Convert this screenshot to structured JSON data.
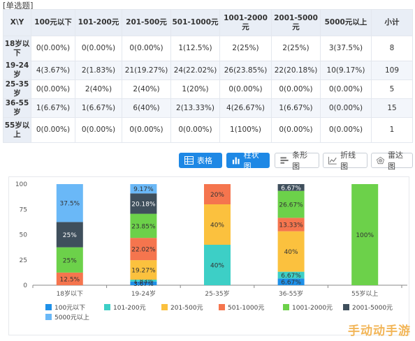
{
  "question_tag": "[单选题]",
  "table": {
    "corner": "X\\Y",
    "columns": [
      "100元以下",
      "101-200元",
      "201-500元",
      "501-1000元",
      "1001-2000元",
      "2001-5000元",
      "5000元以上",
      "小计"
    ],
    "rows": [
      {
        "label": "18岁以下",
        "cells": [
          "0(0.00%)",
          "0(0.00%)",
          "0(0.00%)",
          "1(12.5%)",
          "2(25%)",
          "2(25%)",
          "3(37.5%)",
          "8"
        ]
      },
      {
        "label": "19-24岁",
        "cells": [
          "4(3.67%)",
          "2(1.83%)",
          "21(19.27%)",
          "24(22.02%)",
          "26(23.85%)",
          "22(20.18%)",
          "10(9.17%)",
          "109"
        ]
      },
      {
        "label": "25-35岁",
        "cells": [
          "0(0.00%)",
          "2(40%)",
          "2(40%)",
          "1(20%)",
          "0(0.00%)",
          "0(0.00%)",
          "0(0.00%)",
          "5"
        ]
      },
      {
        "label": "36-55岁",
        "cells": [
          "1(6.67%)",
          "1(6.67%)",
          "6(40%)",
          "2(13.33%)",
          "4(26.67%)",
          "1(6.67%)",
          "0(0.00%)",
          "15"
        ]
      },
      {
        "label": "55岁以上",
        "cells": [
          "0(0.00%)",
          "0(0.00%)",
          "0(0.00%)",
          "0(0.00%)",
          "1(100%)",
          "0(0.00%)",
          "0(0.00%)",
          "1"
        ]
      }
    ]
  },
  "toolbar": {
    "table_label": "表格",
    "bar_label": "柱状图",
    "hbar_label": "条形图",
    "line_label": "折线图",
    "radar_label": "雷达图"
  },
  "colors": {
    "primary": "#1e88e5",
    "series": [
      "#1e90e8",
      "#3dcfc6",
      "#fbc13e",
      "#f5754e",
      "#6cd14a",
      "#3f4f5c",
      "#6ab8f7"
    ]
  },
  "chart_data": {
    "type": "bar",
    "stacked": true,
    "categories": [
      "18岁以下",
      "19-24岁",
      "25-35岁",
      "36-55岁",
      "55岁以上"
    ],
    "ylim": [
      0,
      100
    ],
    "yticks": [
      0,
      25,
      50,
      75,
      100
    ],
    "grid": false,
    "legend_position": "bottom",
    "series": [
      {
        "name": "100元以下",
        "values": [
          0,
          3.67,
          0,
          6.67,
          0
        ],
        "labels": [
          "",
          "3.67%",
          "",
          "6.67%",
          ""
        ]
      },
      {
        "name": "101-200元",
        "values": [
          0,
          1.83,
          40,
          6.67,
          0
        ],
        "labels": [
          "",
          "1.83%",
          "40%",
          "6.67%",
          ""
        ]
      },
      {
        "name": "201-500元",
        "values": [
          0,
          19.27,
          40,
          40,
          0
        ],
        "labels": [
          "",
          "19.27%",
          "40%",
          "40%",
          ""
        ]
      },
      {
        "name": "501-1000元",
        "values": [
          12.5,
          22.02,
          20,
          13.33,
          0
        ],
        "labels": [
          "12.5%",
          "22.02%",
          "20%",
          "13.33%",
          ""
        ]
      },
      {
        "name": "1001-2000元",
        "values": [
          25,
          23.85,
          0,
          26.67,
          100
        ],
        "labels": [
          "25%",
          "23.85%",
          "",
          "26.67%",
          "100%"
        ]
      },
      {
        "name": "2001-5000元",
        "values": [
          25,
          20.18,
          0,
          6.67,
          0
        ],
        "labels": [
          "25%",
          "20.18%",
          "",
          "6.67%",
          ""
        ]
      },
      {
        "name": "5000元以上",
        "values": [
          37.5,
          9.17,
          0,
          0,
          0
        ],
        "labels": [
          "37.5%",
          "9.17%",
          "",
          "",
          ""
        ]
      }
    ]
  },
  "watermark": "手动动手游"
}
